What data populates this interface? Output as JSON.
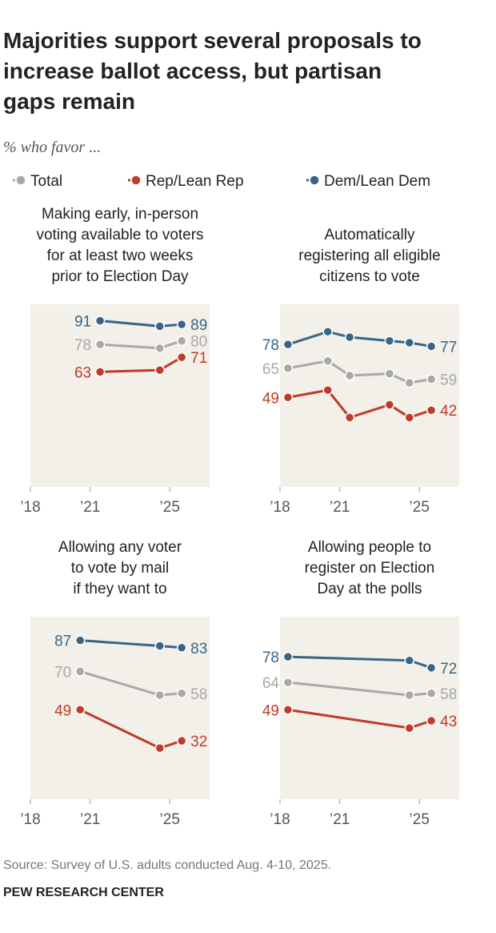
{
  "title": [
    "Majorities support several proposals to",
    "increase ballot access, but partisan",
    "gaps remain"
  ],
  "subtitle": "% who favor ...",
  "legend": [
    {
      "name": "Total",
      "color": "#a8a8a8"
    },
    {
      "name": "Rep/Lean Rep",
      "color": "#bf3b2b"
    },
    {
      "name": "Dem/Lean Dem",
      "color": "#3a6585"
    }
  ],
  "chart_data": [
    {
      "type": "line",
      "title": [
        "Making early, in-person",
        "voting available to voters",
        "for at least two weeks",
        "prior to Election Day"
      ],
      "x": [
        2021.5,
        2024.5,
        2025.6
      ],
      "xlim": [
        2018,
        2027
      ],
      "ylim": [
        0,
        100
      ],
      "xticks": [
        {
          "value": 2018,
          "label": "’18"
        },
        {
          "value": 2021,
          "label": "’21"
        },
        {
          "value": 2025,
          "label": "’25"
        }
      ],
      "series": [
        {
          "color": "#3a6585",
          "values": [
            91,
            88,
            89
          ]
        },
        {
          "color": "#a8a8a8",
          "values": [
            78,
            76,
            80
          ]
        },
        {
          "color": "#bf3b2b",
          "values": [
            63,
            64,
            71
          ]
        }
      ]
    },
    {
      "type": "line",
      "title": [
        "Automatically",
        "registering all eligible",
        "citizens to vote"
      ],
      "x": [
        2018.4,
        2020.4,
        2021.5,
        2023.5,
        2024.5,
        2025.6
      ],
      "xlim": [
        2018,
        2027
      ],
      "ylim": [
        0,
        100
      ],
      "xticks": [
        {
          "value": 2018,
          "label": "’18"
        },
        {
          "value": 2021,
          "label": "’21"
        },
        {
          "value": 2025,
          "label": "’25"
        }
      ],
      "series": [
        {
          "color": "#3a6585",
          "values": [
            78,
            85,
            82,
            80,
            79,
            77
          ]
        },
        {
          "color": "#a8a8a8",
          "values": [
            65,
            69,
            61,
            62,
            57,
            59
          ]
        },
        {
          "color": "#bf3b2b",
          "values": [
            49,
            53,
            38,
            45,
            38,
            42
          ]
        }
      ]
    },
    {
      "type": "line",
      "title": [
        "Allowing any voter",
        "to vote by mail",
        "if they want to"
      ],
      "x": [
        2020.5,
        2024.5,
        2025.6
      ],
      "xlim": [
        2018,
        2027
      ],
      "ylim": [
        0,
        100
      ],
      "xticks": [
        {
          "value": 2018,
          "label": "’18"
        },
        {
          "value": 2021,
          "label": "’21"
        },
        {
          "value": 2025,
          "label": "’25"
        }
      ],
      "series": [
        {
          "color": "#3a6585",
          "values": [
            87,
            84,
            83
          ]
        },
        {
          "color": "#a8a8a8",
          "values": [
            70,
            57,
            58
          ]
        },
        {
          "color": "#bf3b2b",
          "values": [
            49,
            28,
            32
          ]
        }
      ]
    },
    {
      "type": "line",
      "title": [
        "Allowing people to",
        "register on Election",
        "Day at the polls"
      ],
      "x": [
        2018.4,
        2024.5,
        2025.6
      ],
      "xlim": [
        2018,
        2027
      ],
      "ylim": [
        0,
        100
      ],
      "xticks": [
        {
          "value": 2018,
          "label": "’18"
        },
        {
          "value": 2021,
          "label": "’21"
        },
        {
          "value": 2025,
          "label": "’25"
        }
      ],
      "series": [
        {
          "color": "#3a6585",
          "values": [
            78,
            76,
            72
          ]
        },
        {
          "color": "#a8a8a8",
          "values": [
            64,
            57,
            58
          ]
        },
        {
          "color": "#bf3b2b",
          "values": [
            49,
            39,
            43
          ]
        }
      ]
    }
  ],
  "source": "Source: Survey of U.S. adults conducted Aug. 4-10, 2025.",
  "footer": "PEW RESEARCH CENTER"
}
